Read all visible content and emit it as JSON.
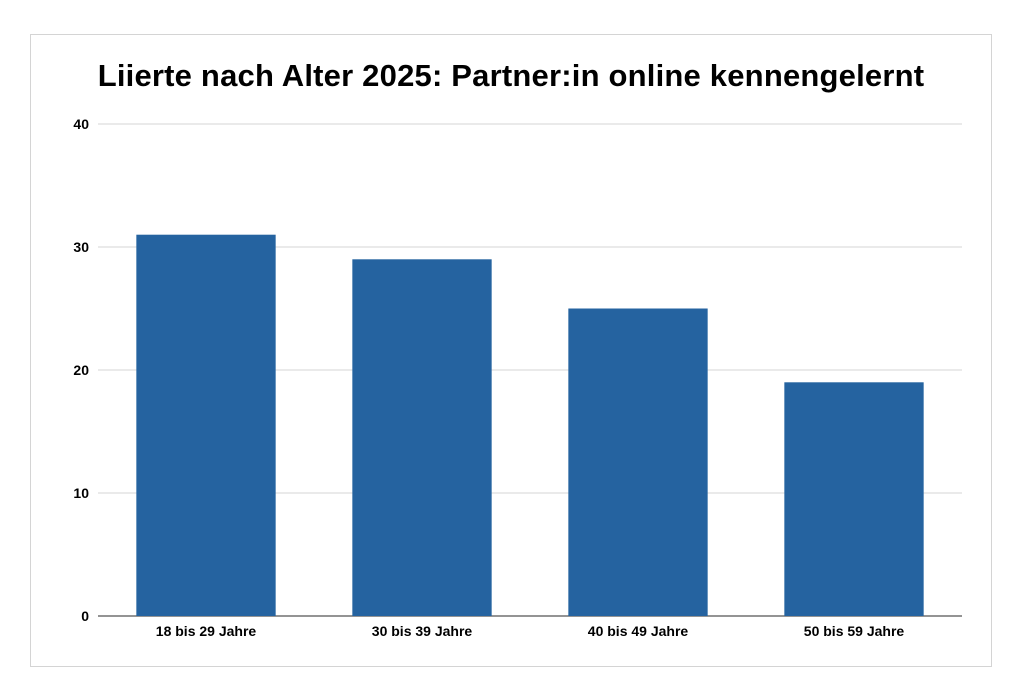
{
  "chart_data": {
    "type": "bar",
    "title": "Liierte nach Alter 2025: Partner:in online kennengelernt",
    "categories": [
      "18 bis 29 Jahre",
      "30 bis 39 Jahre",
      "40 bis 49 Jahre",
      "50 bis 59 Jahre"
    ],
    "values": [
      31,
      29,
      25,
      19
    ],
    "ylim": [
      0,
      40
    ],
    "yticks": [
      "0",
      "10",
      "20",
      "30",
      "40"
    ],
    "grid": true,
    "legend": "none",
    "bar_color": "#2563a0",
    "grid_color": "#d6d6d6",
    "axis_color": "#555555"
  }
}
